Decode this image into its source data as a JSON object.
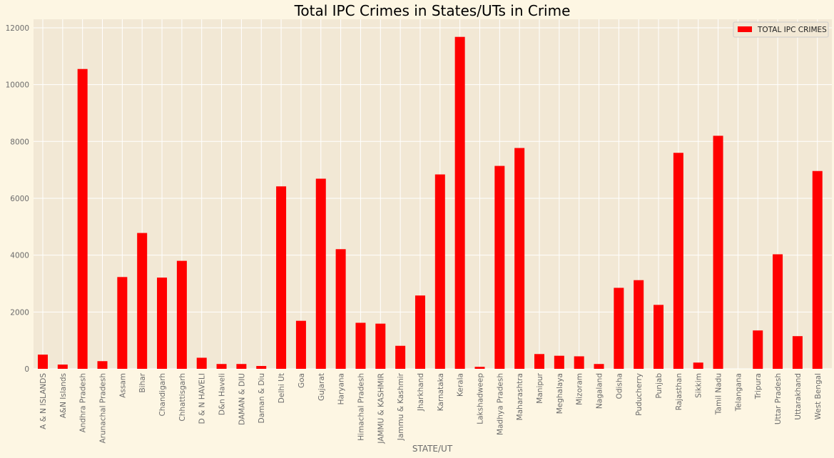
{
  "chart_data": {
    "type": "bar",
    "title": "Total IPC Crimes in States/UTs in Crime",
    "xlabel": "STATE/UT",
    "ylabel": "",
    "ylim": [
      0,
      12300
    ],
    "yticks": [
      0,
      2000,
      4000,
      6000,
      8000,
      10000,
      12000
    ],
    "grid": true,
    "legend_position": "top-right",
    "colors": {
      "bar": "#ff0000",
      "plot_bg": "#f2e8d5",
      "page_bg": "#fdf6e3",
      "grid": "#ffffff"
    },
    "categories": [
      "A & N ISLANDS",
      "A&N Islands",
      "Andhra Pradesh",
      "Arunachal Pradesh",
      "Assam",
      "Bihar",
      "Chandigarh",
      "Chhattisgarh",
      "D & N HAVELI",
      "D&n Haveli",
      "DAMAN & DIU",
      "Daman & Diu",
      "Delhi Ut",
      "Goa",
      "Gujarat",
      "Haryana",
      "Himachal Pradesh",
      "JAMMU & KASHMIR",
      "Jammu & Kashmir",
      "Jharkhand",
      "Karnataka",
      "Kerala",
      "Lakshadweep",
      "Madhya Pradesh",
      "Maharashtra",
      "Manipur",
      "Meghalaya",
      "Mizoram",
      "Nagaland",
      "Odisha",
      "Puducherry",
      "Punjab",
      "Rajasthan",
      "Sikkim",
      "Tamil Nadu",
      "Telangana",
      "Tripura",
      "Uttar Pradesh",
      "Uttarakhand",
      "West Bengal"
    ],
    "series": [
      {
        "name": "TOTAL IPC CRIMES",
        "values": [
          500,
          150,
          10550,
          270,
          3230,
          4780,
          3210,
          3800,
          390,
          170,
          170,
          100,
          6420,
          1690,
          6690,
          4210,
          1620,
          1590,
          810,
          2580,
          6840,
          11680,
          70,
          7140,
          7770,
          520,
          460,
          440,
          170,
          2850,
          3120,
          2250,
          7600,
          220,
          8200,
          0,
          1350,
          4030,
          1150,
          6960
        ]
      }
    ]
  }
}
